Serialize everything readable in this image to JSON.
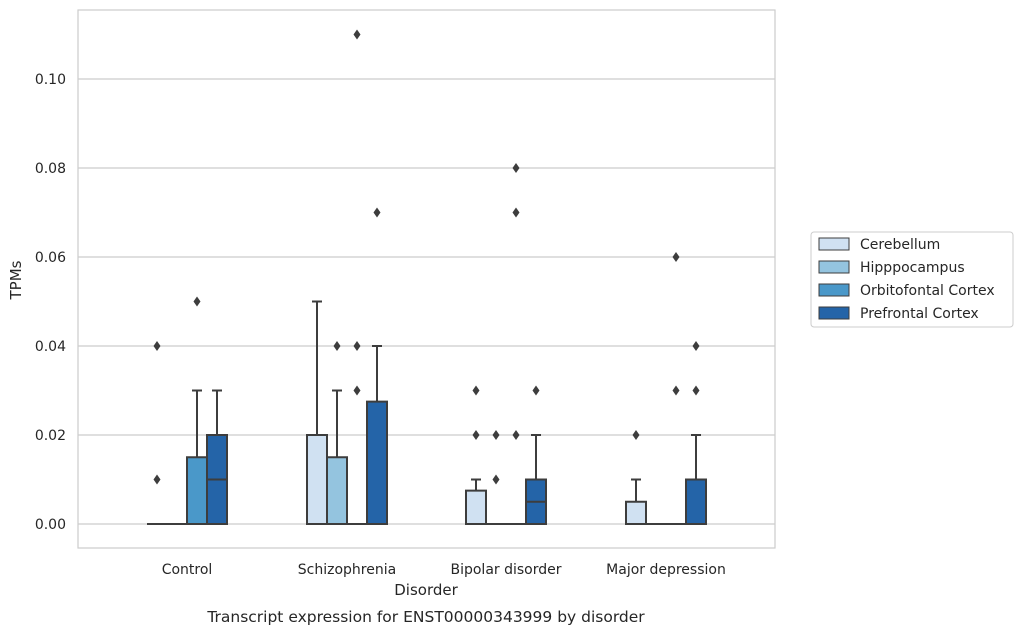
{
  "chart_data": {
    "type": "box",
    "title": "Transcript expression for ENST00000343999 by disorder",
    "xlabel": "Disorder",
    "ylabel": "TPMs",
    "categories": [
      "Control",
      "Schizophrenia",
      "Bipolar disorder",
      "Major depression"
    ],
    "ylim": [
      -0.0055,
      0.116
    ],
    "yticks": [
      0.0,
      0.02,
      0.04,
      0.06,
      0.08,
      0.1
    ],
    "ytick_labels": [
      "0.00",
      "0.02",
      "0.04",
      "0.06",
      "0.08",
      "0.10"
    ],
    "grid": "horizontal",
    "legend_position": "right",
    "series": [
      {
        "name": "Cerebellum",
        "color": "#d0e1f2",
        "boxes": [
          {
            "min": 0,
            "q1": 0,
            "median": 0,
            "q3": 0,
            "max": 0,
            "outliers": [
              0.01,
              0.04
            ]
          },
          {
            "min": 0,
            "q1": 0,
            "median": 0,
            "q3": 0.02,
            "max": 0.05,
            "outliers": []
          },
          {
            "min": 0,
            "q1": 0,
            "median": 0,
            "q3": 0.0075,
            "max": 0.01,
            "outliers": [
              0.02,
              0.03
            ]
          },
          {
            "min": 0,
            "q1": 0,
            "median": 0,
            "q3": 0.005,
            "max": 0.01,
            "outliers": [
              0.02
            ]
          }
        ]
      },
      {
        "name": "Hipppocampus",
        "color": "#94c4df",
        "boxes": [
          {
            "min": 0,
            "q1": 0,
            "median": 0,
            "q3": 0,
            "max": 0,
            "outliers": []
          },
          {
            "min": 0,
            "q1": 0,
            "median": 0,
            "q3": 0.015,
            "max": 0.03,
            "outliers": [
              0.04
            ]
          },
          {
            "min": 0,
            "q1": 0,
            "median": 0,
            "q3": 0,
            "max": 0,
            "outliers": [
              0.01,
              0.02
            ]
          },
          {
            "min": 0,
            "q1": 0,
            "median": 0,
            "q3": 0,
            "max": 0,
            "outliers": []
          }
        ]
      },
      {
        "name": "Orbitofontal Cortex",
        "color": "#4a98c9",
        "boxes": [
          {
            "min": 0,
            "q1": 0,
            "median": 0,
            "q3": 0.015,
            "max": 0.03,
            "outliers": [
              0.05
            ]
          },
          {
            "min": 0,
            "q1": 0,
            "median": 0,
            "q3": 0,
            "max": 0,
            "outliers": [
              0.03,
              0.04,
              0.11
            ]
          },
          {
            "min": 0,
            "q1": 0,
            "median": 0,
            "q3": 0,
            "max": 0,
            "outliers": [
              0.02,
              0.07,
              0.08
            ]
          },
          {
            "min": 0,
            "q1": 0,
            "median": 0,
            "q3": 0,
            "max": 0,
            "outliers": [
              0.03,
              0.06
            ]
          }
        ]
      },
      {
        "name": "Prefrontal Cortex",
        "color": "#2464a8",
        "boxes": [
          {
            "min": 0,
            "q1": 0,
            "median": 0.01,
            "q3": 0.02,
            "max": 0.03,
            "outliers": []
          },
          {
            "min": 0,
            "q1": 0,
            "median": 0,
            "q3": 0.0275,
            "max": 0.04,
            "outliers": [
              0.07
            ]
          },
          {
            "min": 0,
            "q1": 0,
            "median": 0.005,
            "q3": 0.01,
            "max": 0.02,
            "outliers": [
              0.03
            ]
          },
          {
            "min": 0,
            "q1": 0,
            "median": 0,
            "q3": 0.01,
            "max": 0.02,
            "outliers": [
              0.03,
              0.04
            ]
          }
        ]
      }
    ]
  }
}
